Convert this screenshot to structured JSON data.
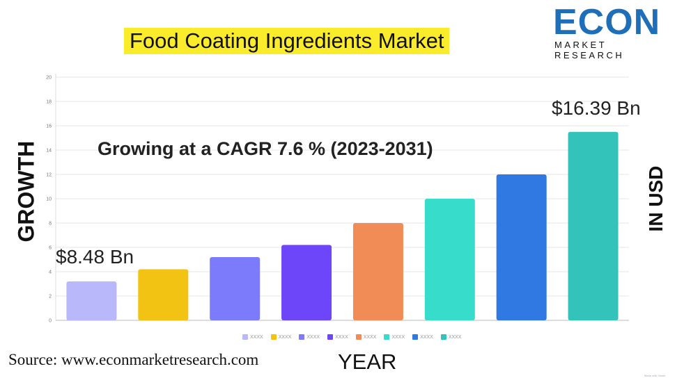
{
  "header": {
    "title": "Food Coating Ingredients Market"
  },
  "logo": {
    "text": "ECON",
    "subtitle": "MARKET RESEARCH"
  },
  "chart_data": {
    "type": "bar",
    "title": "Food Coating Ingredients Market",
    "subtitle": "Growing at a CAGR 7.6 % (2023-2031)",
    "xlabel": "YEAR",
    "ylabel": "GROWTH",
    "y2label": "IN USD",
    "ylim": [
      0,
      20
    ],
    "yticks": [
      0,
      2,
      4,
      6,
      8,
      10,
      12,
      14,
      16,
      18,
      20
    ],
    "categories": [
      "XXXX",
      "XXXX",
      "XXXX",
      "XXXX",
      "XXXX",
      "XXXX",
      "XXXX",
      "XXXX"
    ],
    "values": [
      3.2,
      4.2,
      5.2,
      6.2,
      8,
      10,
      12,
      15.5
    ],
    "colors": [
      "#b8b8fb",
      "#f3c313",
      "#7b7bfb",
      "#6c46f8",
      "#f28c56",
      "#38dccb",
      "#3079e2",
      "#33c3bb"
    ],
    "annotations": {
      "start": "$8.48 Bn",
      "end": "$16.39 Bn"
    },
    "grid": true,
    "legend": "bottom"
  },
  "footer": {
    "source": "Source: www.econmarketresearch.com",
    "watermark": "Made with Visme"
  }
}
